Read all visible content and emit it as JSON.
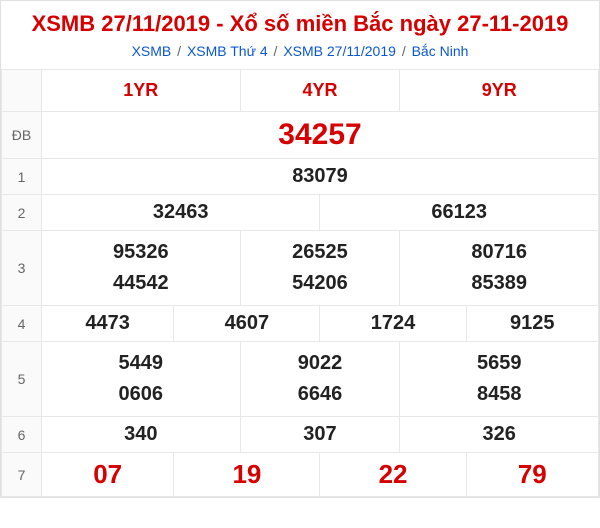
{
  "header": {
    "title": "XSMB 27/11/2019 - Xổ số miền Bắc ngày 27-11-2019",
    "breadcrumbs": [
      "XSMB",
      "XSMB Thứ 4",
      "XSMB 27/11/2019",
      "Bắc Ninh"
    ],
    "sep": "/"
  },
  "table": {
    "col_headers": [
      "1YR",
      "4YR",
      "9YR"
    ],
    "rows": [
      {
        "label": "ĐB",
        "cells": [
          {
            "v": "34257",
            "colspan": 12,
            "cls": "db"
          }
        ]
      },
      {
        "label": "1",
        "cells": [
          {
            "v": "83079",
            "colspan": 12
          }
        ]
      },
      {
        "label": "2",
        "cells": [
          {
            "v": "32463",
            "colspan": 6
          },
          {
            "v": "66123",
            "colspan": 6
          }
        ]
      },
      {
        "label": "3",
        "multi": true,
        "cells": [
          {
            "v": [
              "95326",
              "44542"
            ],
            "colspan": 4
          },
          {
            "v": [
              "26525",
              "54206"
            ],
            "colspan": 4
          },
          {
            "v": [
              "80716",
              "85389"
            ],
            "colspan": 4
          }
        ]
      },
      {
        "label": "4",
        "cells": [
          {
            "v": "4473",
            "colspan": 3
          },
          {
            "v": "4607",
            "colspan": 3
          },
          {
            "v": "1724",
            "colspan": 3
          },
          {
            "v": "9125",
            "colspan": 3
          }
        ]
      },
      {
        "label": "5",
        "multi": true,
        "cells": [
          {
            "v": [
              "5449",
              "0606"
            ],
            "colspan": 4
          },
          {
            "v": [
              "9022",
              "6646"
            ],
            "colspan": 4
          },
          {
            "v": [
              "5659",
              "8458"
            ],
            "colspan": 4
          }
        ]
      },
      {
        "label": "6",
        "cells": [
          {
            "v": "340",
            "colspan": 4
          },
          {
            "v": "307",
            "colspan": 4
          },
          {
            "v": "326",
            "colspan": 4
          }
        ]
      },
      {
        "label": "7",
        "cells": [
          {
            "v": "07",
            "colspan": 3,
            "cls": "g7"
          },
          {
            "v": "19",
            "colspan": 3,
            "cls": "g7"
          },
          {
            "v": "22",
            "colspan": 3,
            "cls": "g7"
          },
          {
            "v": "79",
            "colspan": 3,
            "cls": "g7"
          }
        ]
      }
    ]
  },
  "style": {
    "accent": "#d60000",
    "link": "#0b57d0",
    "border": "#e8e8e8",
    "bg": "#ffffff",
    "label_bg": "#fafafa",
    "font_family": "Arial",
    "title_fontsize": 22,
    "cell_fontsize": 20,
    "db_fontsize": 30,
    "g7_fontsize": 26
  }
}
